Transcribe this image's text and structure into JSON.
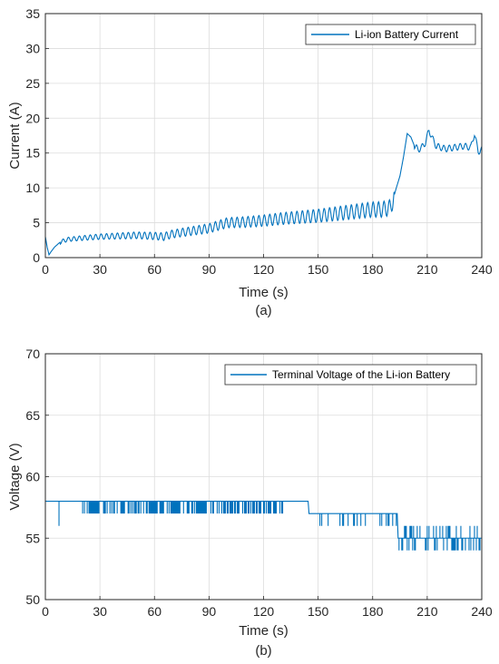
{
  "chart_data": [
    {
      "type": "line",
      "panel_label": "(a)",
      "xlabel": "Time (s)",
      "ylabel": "Current (A)",
      "xlim": [
        0,
        240
      ],
      "ylim": [
        0,
        35
      ],
      "xticks": [
        0,
        30,
        60,
        90,
        120,
        150,
        180,
        210,
        240
      ],
      "yticks": [
        0,
        5,
        10,
        15,
        20,
        25,
        30,
        35
      ],
      "grid": true,
      "legend_position": "top-right",
      "color": "#0072BD",
      "series": [
        {
          "name": "Li-ion Battery Current",
          "x": [
            0,
            1,
            2,
            3,
            5,
            8,
            12,
            20,
            30,
            40,
            50,
            60,
            65,
            70,
            80,
            90,
            95,
            100,
            110,
            120,
            130,
            140,
            150,
            160,
            170,
            180,
            185,
            190,
            193,
            195,
            197,
            199,
            201,
            203,
            205,
            207,
            209,
            211,
            213,
            215,
            220,
            225,
            230,
            234,
            236,
            238,
            240
          ],
          "y": [
            3.0,
            1.5,
            0.4,
            0.8,
            1.5,
            2.2,
            2.6,
            2.8,
            3.0,
            3.1,
            3.2,
            3.1,
            3.0,
            3.4,
            3.8,
            4.2,
            4.6,
            5.0,
            5.1,
            5.3,
            5.6,
            5.8,
            6.0,
            6.3,
            6.6,
            6.9,
            6.9,
            7.2,
            10.0,
            11.7,
            14.5,
            17.8,
            17.3,
            16.0,
            15.5,
            15.8,
            16.5,
            18.3,
            17.0,
            16.0,
            15.6,
            15.8,
            16.0,
            15.8,
            17.8,
            15.2,
            15.5
          ]
        }
      ]
    },
    {
      "type": "line",
      "panel_label": "(b)",
      "xlabel": "Time (s)",
      "ylabel": "Voltage (V)",
      "xlim": [
        0,
        240
      ],
      "ylim": [
        50,
        70
      ],
      "xticks": [
        0,
        30,
        60,
        90,
        120,
        150,
        180,
        210,
        240
      ],
      "yticks": [
        50,
        55,
        60,
        65,
        70
      ],
      "grid": true,
      "legend_position": "top-right",
      "color": "#0072BD",
      "series": [
        {
          "name": "Terminal Voltage of the Li-ion Battery",
          "x": [
            0,
            7,
            7.5,
            20,
            30,
            60,
            90,
            120,
            144,
            145,
            155,
            180,
            193,
            194,
            200,
            210,
            220,
            230,
            240
          ],
          "y": [
            58,
            58,
            56,
            58,
            57,
            58,
            57,
            58,
            58,
            57,
            57,
            57,
            57,
            56,
            55,
            56,
            55,
            55,
            56
          ]
        }
      ]
    }
  ]
}
